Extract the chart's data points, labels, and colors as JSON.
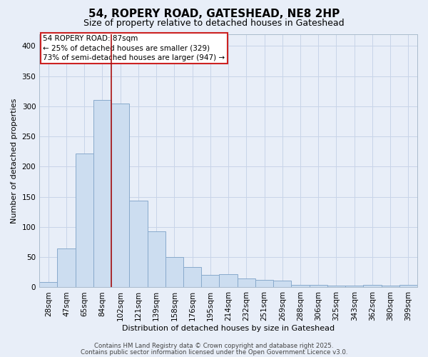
{
  "title": "54, ROPERY ROAD, GATESHEAD, NE8 2HP",
  "subtitle": "Size of property relative to detached houses in Gateshead",
  "xlabel": "Distribution of detached houses by size in Gateshead",
  "ylabel": "Number of detached properties",
  "categories": [
    "28sqm",
    "47sqm",
    "65sqm",
    "84sqm",
    "102sqm",
    "121sqm",
    "139sqm",
    "158sqm",
    "176sqm",
    "195sqm",
    "214sqm",
    "232sqm",
    "251sqm",
    "269sqm",
    "288sqm",
    "306sqm",
    "325sqm",
    "343sqm",
    "362sqm",
    "380sqm",
    "399sqm"
  ],
  "values": [
    9,
    65,
    222,
    310,
    305,
    144,
    93,
    50,
    34,
    21,
    22,
    15,
    12,
    11,
    4,
    4,
    3,
    3,
    4,
    3,
    4
  ],
  "bar_color": "#ccddf0",
  "bar_edge_color": "#88aacc",
  "grid_color": "#c8d4e8",
  "background_color": "#e8eef8",
  "vline_color": "#aa1111",
  "annotation_text": "54 ROPERY ROAD: 87sqm\n← 25% of detached houses are smaller (329)\n73% of semi-detached houses are larger (947) →",
  "annotation_box_facecolor": "#ffffff",
  "annotation_box_edgecolor": "#cc2222",
  "ylim": [
    0,
    420
  ],
  "yticks": [
    0,
    50,
    100,
    150,
    200,
    250,
    300,
    350,
    400
  ],
  "footer1": "Contains HM Land Registry data © Crown copyright and database right 2025.",
  "footer2": "Contains public sector information licensed under the Open Government Licence v3.0.",
  "title_fontsize": 11,
  "subtitle_fontsize": 9,
  "axis_label_fontsize": 8,
  "tick_fontsize": 7.5,
  "annotation_fontsize": 7.5,
  "footer_fontsize": 6.2
}
